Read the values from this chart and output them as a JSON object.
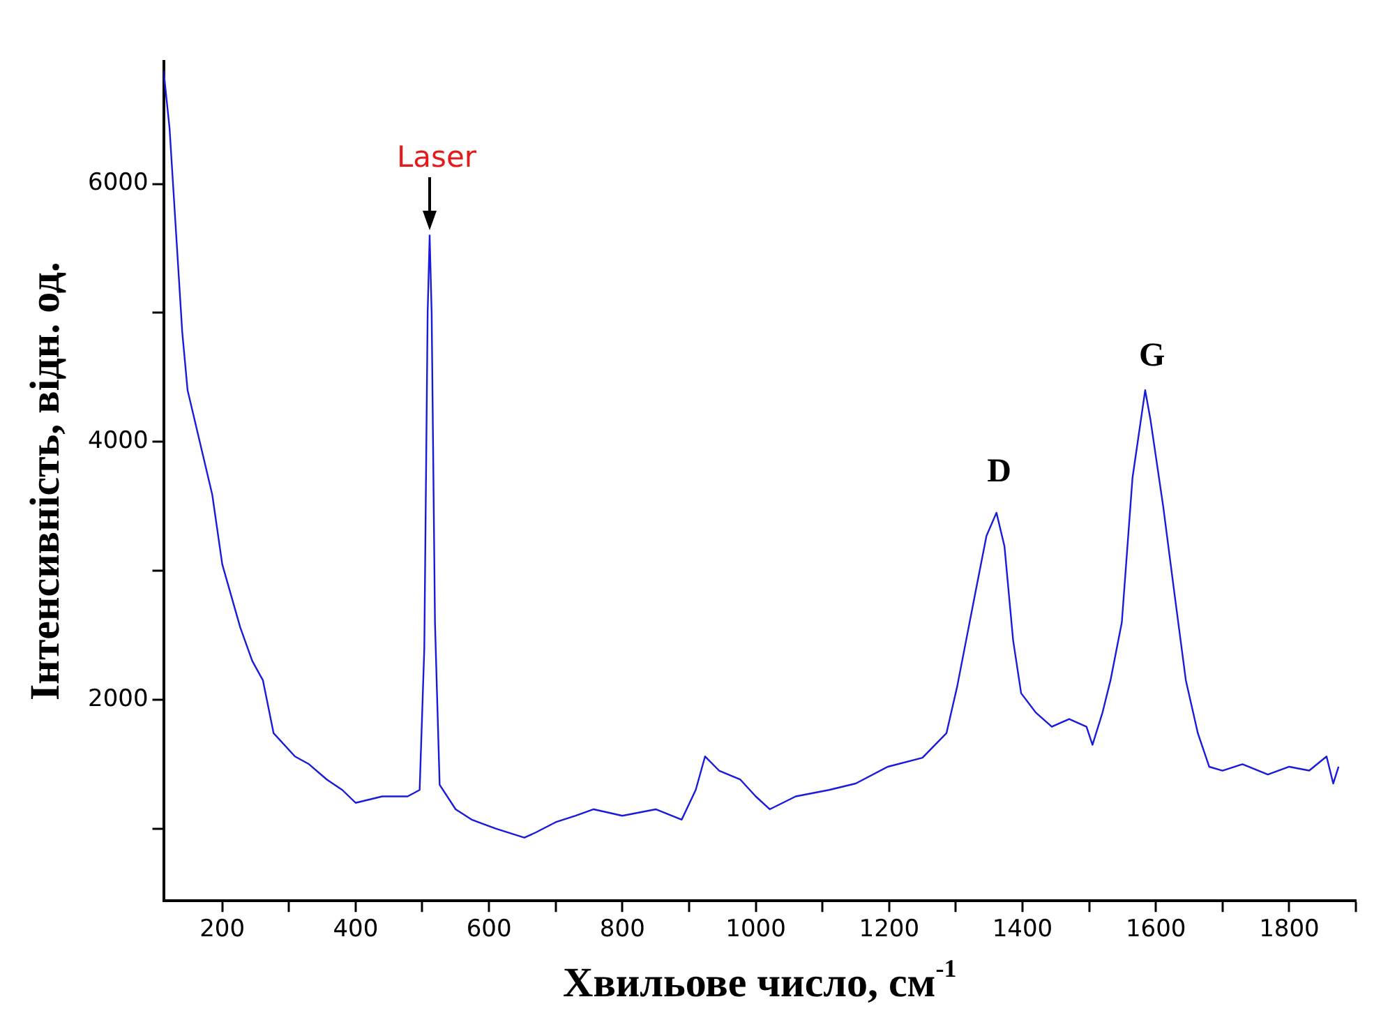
{
  "chart_data": {
    "type": "line",
    "xlabel": "Хвильове число, см$^{-1}$",
    "ylabel": "Інтенсивність, відн. од.",
    "xlim": [
      112,
      1900
    ],
    "ylim": [
      440,
      6950
    ],
    "xticks": [
      200,
      {
        "value": 300,
        "label": null
      },
      400,
      {
        "value": 500,
        "label": null
      },
      600,
      {
        "value": 700,
        "label": null
      },
      800,
      {
        "value": 900,
        "label": null
      },
      1000,
      {
        "value": 1100,
        "label": null
      },
      1200,
      {
        "value": 1300,
        "label": null
      },
      1400,
      {
        "value": 1500,
        "label": null
      },
      1600,
      {
        "value": 1700,
        "label": null
      },
      1800,
      {
        "value": 1900,
        "label": null
      }
    ],
    "yticks": [
      {
        "value": 1000,
        "label": null
      },
      2000,
      {
        "value": 3000,
        "label": null
      },
      4000,
      {
        "value": 5000,
        "label": null
      },
      6000
    ],
    "grid": false,
    "legend": false,
    "marker": "none",
    "line_style": "solid",
    "annotations": [
      {
        "text": "Laser",
        "x": 511,
        "y": 5600
      },
      {
        "text": "D",
        "x": 1361,
        "y": 3500
      },
      {
        "text": "G",
        "x": 1590,
        "y": 4400
      }
    ],
    "series": [
      {
        "color": "#1a1adc",
        "x": [
          112,
          121,
          140,
          148,
          185,
          200,
          227,
          245,
          261,
          277,
          309,
          330,
          357,
          380,
          400,
          440,
          478,
          496,
          503,
          508,
          511,
          514,
          519,
          526,
          550,
          574,
          610,
          653,
          670,
          700,
          730,
          757,
          800,
          850,
          889,
          910,
          924,
          945,
          977,
          1000,
          1021,
          1060,
          1110,
          1150,
          1198,
          1250,
          1286,
          1302,
          1329,
          1346,
          1361,
          1373,
          1386,
          1398,
          1420,
          1444,
          1470,
          1496,
          1505,
          1520,
          1532,
          1549,
          1565,
          1584,
          1592,
          1611,
          1628,
          1645,
          1663,
          1680,
          1700,
          1730,
          1768,
          1800,
          1830,
          1856,
          1866,
          1874
        ],
        "values": [
          6880,
          6430,
          4850,
          4400,
          3590,
          3050,
          2560,
          2300,
          2150,
          1740,
          1560,
          1500,
          1380,
          1300,
          1200,
          1250,
          1250,
          1300,
          2400,
          5000,
          5600,
          5000,
          2600,
          1340,
          1150,
          1070,
          1000,
          930,
          970,
          1050,
          1100,
          1150,
          1100,
          1150,
          1070,
          1300,
          1560,
          1450,
          1380,
          1250,
          1150,
          1250,
          1300,
          1350,
          1480,
          1550,
          1740,
          2100,
          2820,
          3270,
          3450,
          3190,
          2460,
          2050,
          1900,
          1790,
          1850,
          1790,
          1650,
          1900,
          2150,
          2600,
          3720,
          4400,
          4170,
          3500,
          2820,
          2150,
          1740,
          1480,
          1450,
          1500,
          1420,
          1480,
          1450,
          1560,
          1350,
          1480
        ]
      }
    ]
  }
}
